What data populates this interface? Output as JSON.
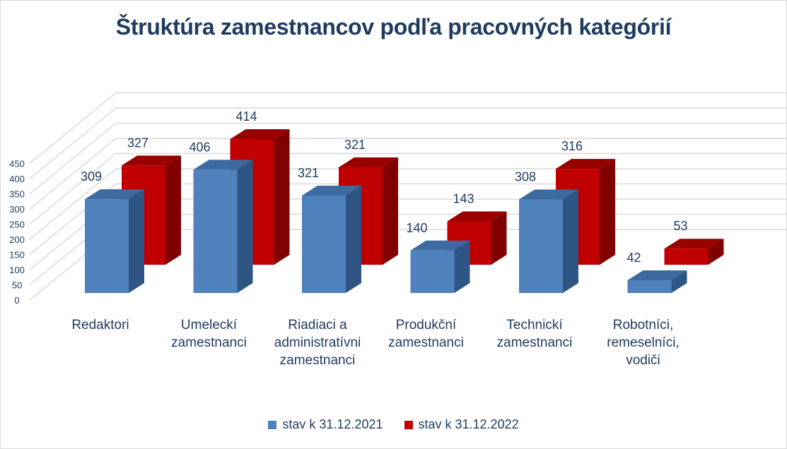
{
  "chart_data": {
    "type": "bar",
    "title": "Štruktúra zamestnancov podľa pracovných kategórií",
    "categories": [
      [
        "Redaktori"
      ],
      [
        "Umeleckí",
        "zamestnanci"
      ],
      [
        "Riadiaci a",
        "administratívni",
        "zamestnanci"
      ],
      [
        "Produkční",
        "zamestnanci"
      ],
      [
        "Technickí",
        "zamestnanci"
      ],
      [
        "Robotníci,",
        "remeselníci,",
        "vodiči"
      ]
    ],
    "series": [
      {
        "name": "stav k 31.12.2021",
        "values": [
          309,
          406,
          321,
          140,
          308,
          42
        ],
        "color": "#4f81bd"
      },
      {
        "name": "stav k 31.12.2022",
        "values": [
          327,
          414,
          321,
          143,
          316,
          53
        ],
        "color": "#c00000"
      }
    ],
    "yticks": [
      0,
      50,
      100,
      150,
      200,
      250,
      300,
      350,
      400,
      450
    ],
    "ylim": [
      0,
      450
    ],
    "grid": true,
    "legend": "bottom"
  }
}
